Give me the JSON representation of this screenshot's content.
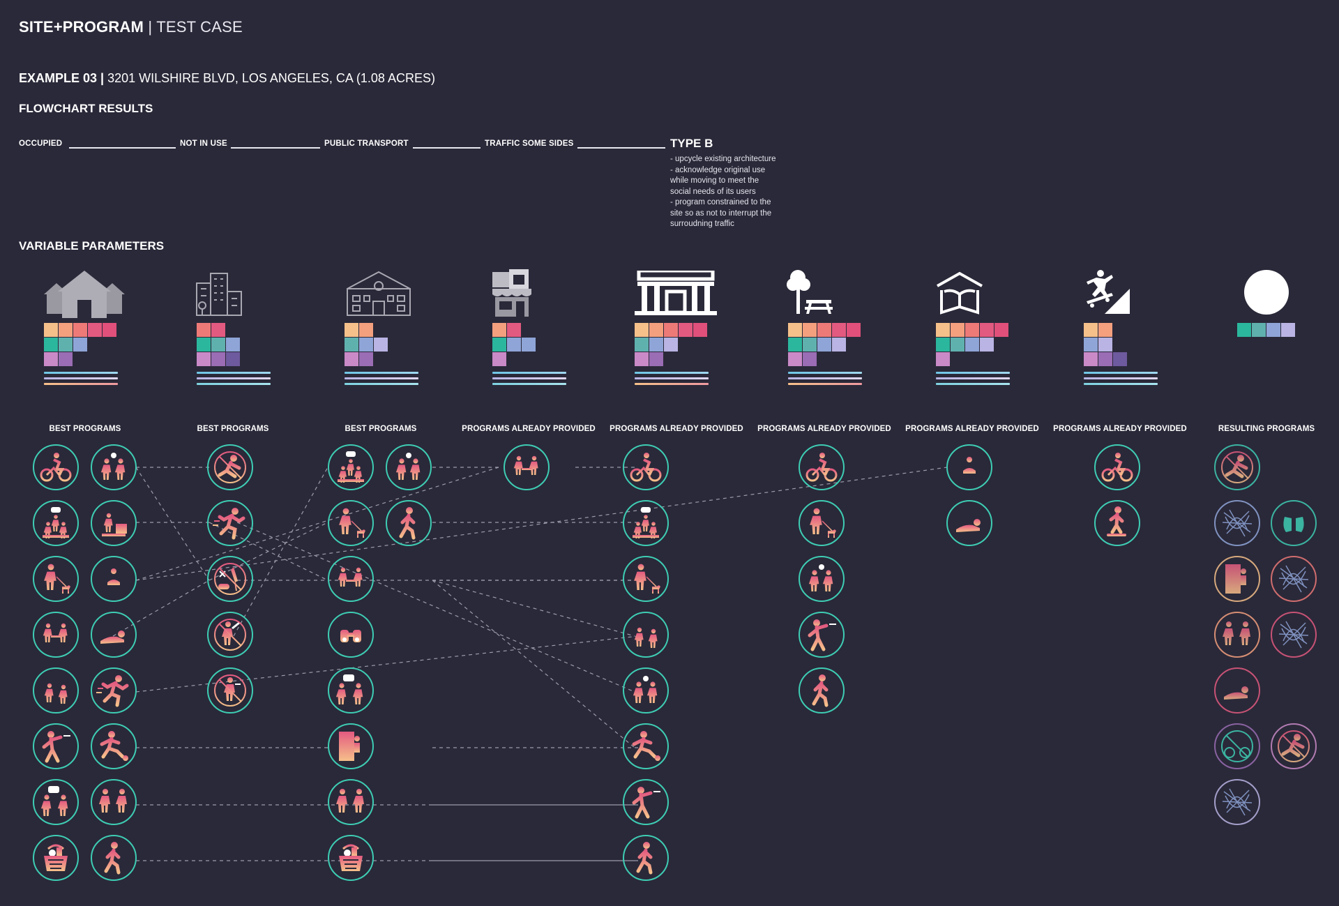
{
  "header": {
    "title_bold": "SITE+PROGRAM",
    "title_sep": " | ",
    "title_thin": "TEST CASE"
  },
  "example": {
    "label": "EXAMPLE 03",
    "sep": " | ",
    "address": "3201 WILSHIRE BLVD, LOS ANGELES, CA (1.08 ACRES)"
  },
  "sections": {
    "flowchart": "FLOWCHART RESULTS",
    "variable": "VARIABLE PARAMETERS"
  },
  "flowchart": {
    "steps": [
      "OCCUPIED",
      "NOT IN USE",
      "PUBLIC TRANSPORT",
      "TRAFFIC SOME SIDES"
    ],
    "result_title": "TYPE B",
    "result_notes": [
      "- upcycle existing architecture",
      "- acknowledge original use",
      "while moving to meet the",
      "social needs of its users",
      "- program constrained to the",
      "site so as not to interrupt the",
      "surroudning traffic"
    ]
  },
  "parameters": [
    {
      "icon": "houses-icon",
      "label": "BEST PROGRAMS"
    },
    {
      "icon": "apartment-building-icon",
      "label": "BEST PROGRAMS"
    },
    {
      "icon": "school-building-icon",
      "label": "BEST PROGRAMS"
    },
    {
      "icon": "storefront-icon",
      "label": "PROGRAMS ALREADY PROVIDED"
    },
    {
      "icon": "civic-building-icon",
      "label": "PROGRAMS ALREADY PROVIDED"
    },
    {
      "icon": "park-tree-bench-icon",
      "label": "PROGRAMS ALREADY PROVIDED"
    },
    {
      "icon": "library-book-icon",
      "label": "PROGRAMS ALREADY PROVIDED"
    },
    {
      "icon": "skateboard-ramp-icon",
      "label": "PROGRAMS ALREADY PROVIDED"
    },
    {
      "icon": "white-circle-icon",
      "label": "RESULTING PROGRAMS"
    }
  ],
  "colors": {
    "background": "#2a2939",
    "teal": "#3ecdb4",
    "palette": [
      "#f6c08a",
      "#f4a07e",
      "#ee7a78",
      "#e35a80",
      "#2bb79e",
      "#5fb1ae",
      "#8fa5d8",
      "#b9b4e4",
      "#c98ac7",
      "#9a6db4",
      "#6e5a9e"
    ]
  },
  "icons": [
    "cyclist-icon",
    "kids-playing-icon",
    "group-talk-icon",
    "kids-crafts-icon",
    "dog-walker-icon",
    "reading-icon",
    "cafe-table-icon",
    "lying-down-icon",
    "runners-icon",
    "running-man-icon",
    "ball-thrower-icon",
    "soccer-kick-icon",
    "conversation-icon",
    "handshake-icon",
    "basket-icon",
    "walker-icon",
    "no-running-icon",
    "drugs-icon",
    "no-vandalism-icon",
    "no-smoking-icon",
    "binoculars-icon",
    "door-icon",
    "skateboarder-icon",
    "no-bike-icon"
  ]
}
